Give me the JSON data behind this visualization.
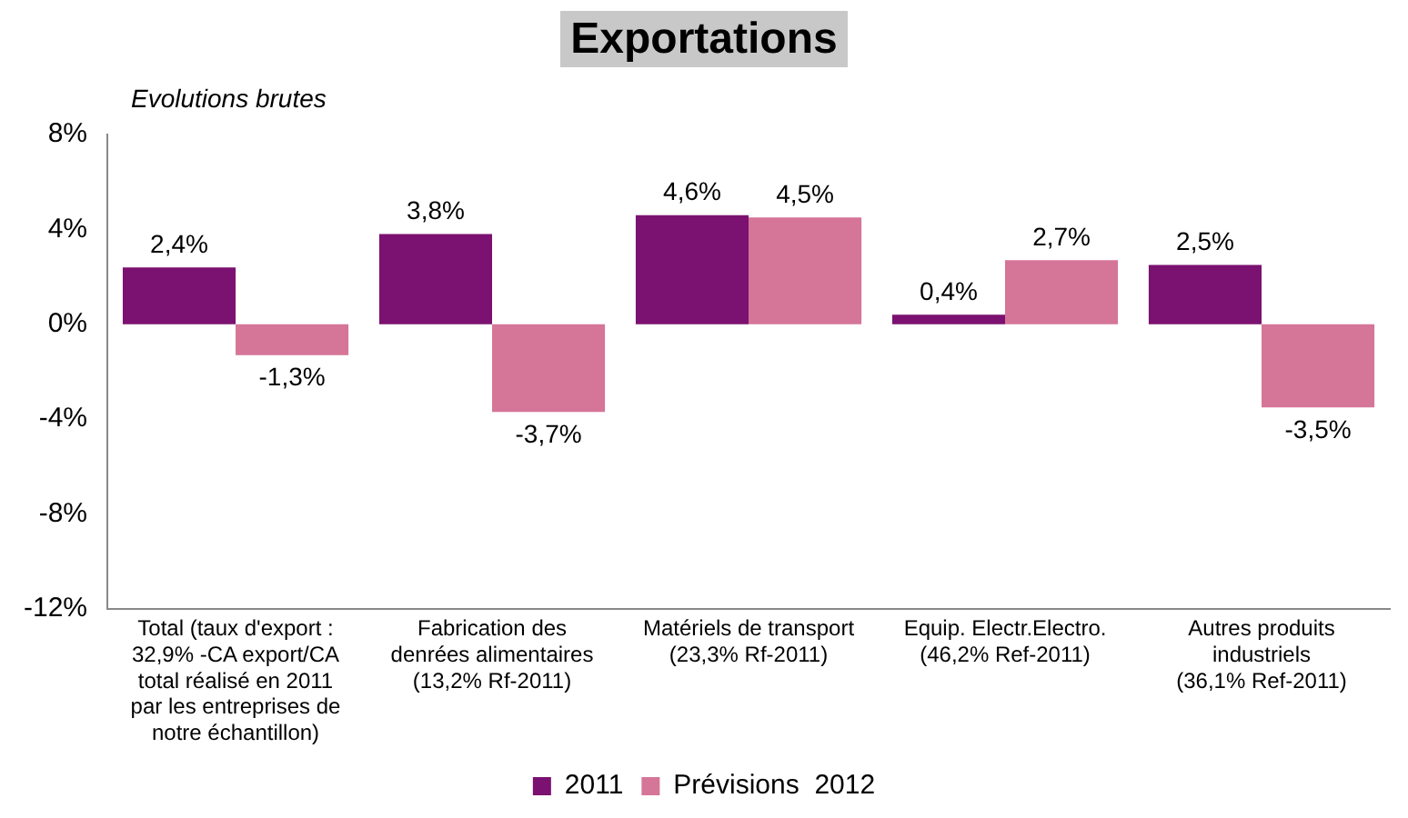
{
  "chart_data": {
    "type": "bar",
    "title": "Exportations",
    "ylabel": "Evolutions brutes",
    "categories": [
      "Total (taux d'export :\n32,9% -CA export/CA\ntotal réalisé en 2011\npar les entreprises de\nnotre échantillon)",
      "Fabrication des\ndenrées alimentaires\n(13,2% Rf-2011)",
      "Matériels de transport\n(23,3% Rf-2011)",
      "Equip. Electr.Electro.\n(46,2% Ref-2011)",
      "Autres produits\nindustriels\n(36,1% Ref-2011)"
    ],
    "series": [
      {
        "name": "2011",
        "color": "#7b1170",
        "values": [
          2.4,
          3.8,
          4.6,
          0.4,
          2.5
        ],
        "value_labels": [
          "2,4%",
          "3,8%",
          "4,6%",
          "0,4%",
          "2,5%"
        ]
      },
      {
        "name": "Prévisions  2012",
        "color": "#d57597",
        "values": [
          -1.3,
          -3.7,
          4.5,
          2.7,
          -3.5
        ],
        "value_labels": [
          "-1,3%",
          "-3,7%",
          "4,5%",
          "2,7%",
          "-3,5%"
        ]
      }
    ],
    "ylim": [
      -12,
      8
    ],
    "yticks": [
      {
        "value": -12,
        "label": "-12%"
      },
      {
        "value": -8,
        "label": "-8%"
      },
      {
        "value": -4,
        "label": "-4%"
      },
      {
        "value": 0,
        "label": "0%"
      },
      {
        "value": 4,
        "label": "4%"
      },
      {
        "value": 8,
        "label": "8%"
      }
    ],
    "grid": false,
    "legend": "bottom"
  }
}
